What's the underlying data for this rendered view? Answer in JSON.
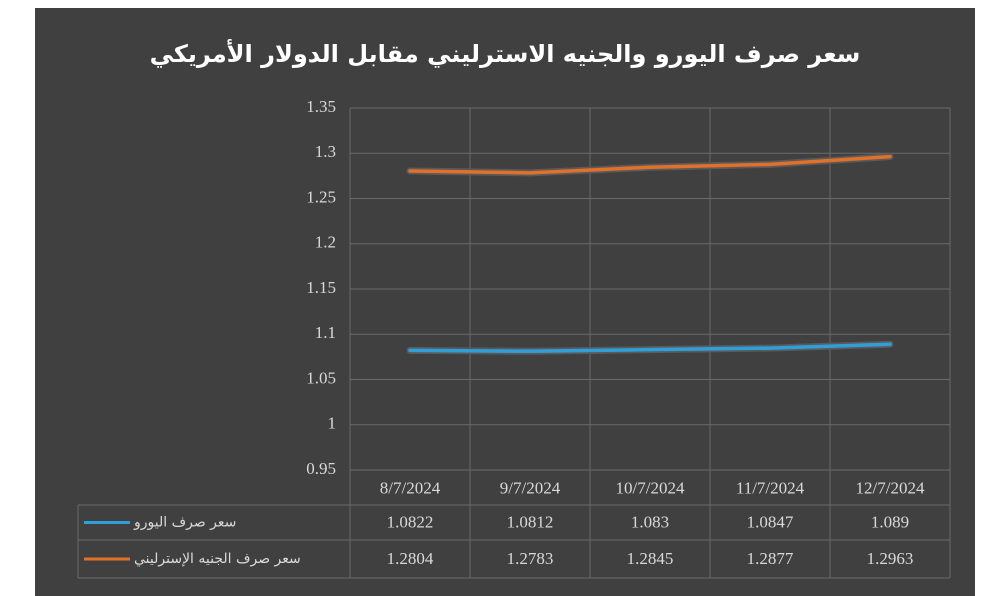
{
  "chart_data": {
    "type": "line",
    "title": "سعر صرف اليورو والجنيه الاسترليني مقابل الدولار الأمريكي",
    "categories": [
      "8/7/2024",
      "9/7/2024",
      "10/7/2024",
      "11/7/2024",
      "12/7/2024"
    ],
    "series": [
      {
        "name": "سعر صرف اليورو",
        "color": "#2e9fd9",
        "values": [
          1.0822,
          1.0812,
          1.083,
          1.0847,
          1.089
        ]
      },
      {
        "name": "سعر صرف الجنيه الإسترليني",
        "color": "#e0702a",
        "values": [
          1.2804,
          1.2783,
          1.2845,
          1.2877,
          1.2963
        ]
      }
    ],
    "ylim": [
      0.95,
      1.35
    ],
    "yticks": [
      0.95,
      1,
      1.05,
      1.1,
      1.15,
      1.2,
      1.25,
      1.3,
      1.35
    ],
    "grid": true
  }
}
